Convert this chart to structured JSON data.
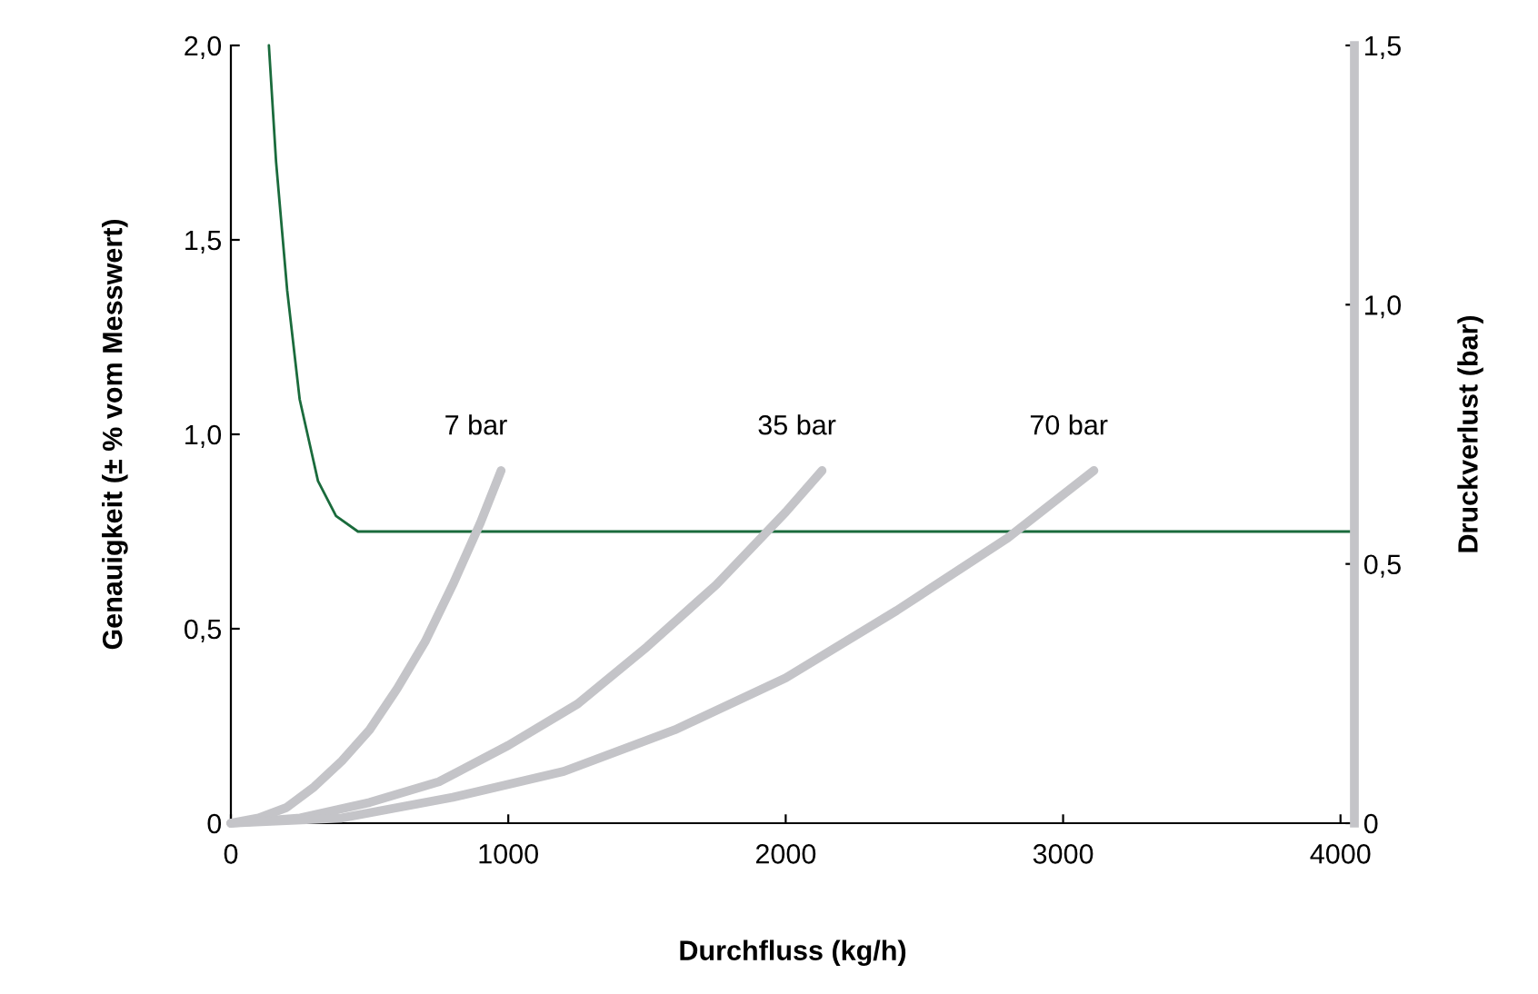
{
  "chart_data": {
    "type": "line",
    "xlabel": "Durchfluss (kg/h)",
    "ylabel": "Genauigkeit (± % vom Messwert)",
    "y2label": "Druckverlust (bar)",
    "xlim": [
      0,
      4050
    ],
    "xticks": [
      0,
      1000,
      2000,
      3000,
      4000
    ],
    "ylim": [
      0,
      2.0
    ],
    "yticks": [
      {
        "value": 0,
        "label": "0"
      },
      {
        "value": 0.5,
        "label": "0,5"
      },
      {
        "value": 1.0,
        "label": "1,0"
      },
      {
        "value": 1.5,
        "label": "1,5"
      },
      {
        "value": 2.0,
        "label": "2,0"
      }
    ],
    "y2lim": [
      0,
      1.5
    ],
    "y2ticks": [
      {
        "value": 0,
        "label": "0"
      },
      {
        "value": 0.5,
        "label": "0,5"
      },
      {
        "value": 1.0,
        "label": "1,0"
      },
      {
        "value": 1.5,
        "label": "1,5"
      }
    ],
    "grid": false,
    "legend": false,
    "marker": "none",
    "line_style": "solid",
    "series": [
      {
        "color": "#1a6b3c",
        "x": [
          137,
          163,
          203,
          248,
          314,
          379,
          458,
          4040
        ],
        "values": [
          2.0,
          1.7,
          1.37,
          1.09,
          0.88,
          0.79,
          0.75,
          0.75
        ]
      },
      {
        "name": "7 bar",
        "color": "#c4c4c8",
        "axis": "y2",
        "x": [
          0,
          100,
          200,
          300,
          400,
          500,
          600,
          700,
          800,
          900,
          974
        ],
        "values": [
          0,
          0.01,
          0.03,
          0.07,
          0.12,
          0.18,
          0.26,
          0.35,
          0.46,
          0.58,
          0.68
        ]
      },
      {
        "name": "35 bar",
        "color": "#c4c4c8",
        "axis": "y2",
        "x": [
          0,
          250,
          500,
          750,
          1000,
          1250,
          1500,
          1750,
          2000,
          2131
        ],
        "values": [
          0,
          0.01,
          0.04,
          0.08,
          0.15,
          0.23,
          0.34,
          0.46,
          0.6,
          0.68
        ]
      },
      {
        "name": "70 bar",
        "color": "#c4c4c8",
        "axis": "y2",
        "x": [
          0,
          400,
          800,
          1200,
          1600,
          2000,
          2400,
          2800,
          3111
        ],
        "values": [
          0,
          0.01,
          0.05,
          0.1,
          0.18,
          0.28,
          0.41,
          0.55,
          0.68
        ]
      }
    ]
  }
}
